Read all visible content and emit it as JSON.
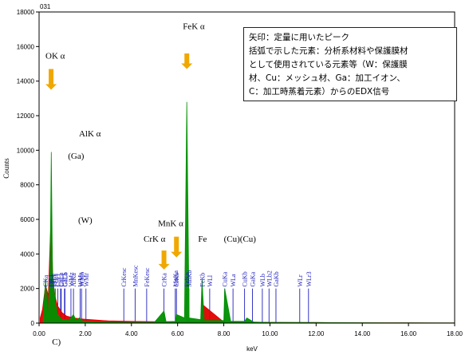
{
  "chart_data": {
    "type": "line",
    "title": "",
    "spectrum_id": "031",
    "xlabel": "keV",
    "ylabel": "Counts",
    "xlim": [
      0,
      18
    ],
    "ylim": [
      0,
      18000
    ],
    "x_ticks": [
      "0.00",
      "2.00",
      "4.00",
      "6.00",
      "8.00",
      "10.00",
      "12.00",
      "14.00",
      "16.00",
      "18.00"
    ],
    "y_ticks": [
      "0",
      "2000",
      "4000",
      "6000",
      "8000",
      "10000",
      "12000",
      "14000",
      "16000",
      "18000"
    ],
    "grid": false,
    "series": [
      {
        "color": "#e00000",
        "points": [
          [
            0.05,
            300
          ],
          [
            0.15,
            800
          ],
          [
            0.28,
            2200
          ],
          [
            0.4,
            1600
          ],
          [
            0.52,
            6400
          ],
          [
            0.6,
            2400
          ],
          [
            0.7,
            1500
          ],
          [
            0.8,
            1000
          ],
          [
            1.0,
            600
          ],
          [
            1.2,
            400
          ],
          [
            1.5,
            300
          ],
          [
            1.8,
            250
          ],
          [
            2.0,
            220
          ],
          [
            3.0,
            130
          ],
          [
            4.0,
            100
          ],
          [
            5.0,
            90
          ],
          [
            6.0,
            80
          ],
          [
            7.0,
            70
          ],
          [
            7.05,
            1100
          ],
          [
            8.0,
            60
          ],
          [
            9.0,
            50
          ],
          [
            10.0,
            45
          ],
          [
            11.0,
            40
          ],
          [
            12.0,
            35
          ],
          [
            13.0,
            25
          ],
          [
            14.0,
            20
          ],
          [
            15.0,
            15
          ],
          [
            16.0,
            12
          ],
          [
            17.0,
            10
          ],
          [
            18.0,
            8
          ]
        ]
      },
      {
        "color": "#009000",
        "points": [
          [
            0.18,
            200
          ],
          [
            0.28,
            2600
          ],
          [
            0.38,
            200
          ],
          [
            0.48,
            3200
          ],
          [
            0.53,
            9900
          ],
          [
            0.58,
            3000
          ],
          [
            0.7,
            1200
          ],
          [
            0.8,
            500
          ],
          [
            1.0,
            200
          ],
          [
            1.1,
            200
          ],
          [
            1.3,
            150
          ],
          [
            1.49,
            500
          ],
          [
            1.6,
            150
          ],
          [
            1.74,
            300
          ],
          [
            1.9,
            100
          ],
          [
            2.5,
            60
          ],
          [
            4.0,
            40
          ],
          [
            5.0,
            50
          ],
          [
            5.41,
            700
          ],
          [
            5.5,
            80
          ],
          [
            5.9,
            100
          ],
          [
            5.95,
            500
          ],
          [
            6.3,
            300
          ],
          [
            6.4,
            12800
          ],
          [
            6.5,
            300
          ],
          [
            7.0,
            200
          ],
          [
            7.06,
            2500
          ],
          [
            7.15,
            150
          ],
          [
            8.0,
            150
          ],
          [
            8.04,
            2000
          ],
          [
            8.3,
            100
          ],
          [
            8.9,
            100
          ],
          [
            9.0,
            300
          ],
          [
            9.3,
            60
          ],
          [
            10.0,
            40
          ],
          [
            12.0,
            30
          ],
          [
            15.0,
            20
          ],
          [
            18.0,
            10
          ]
        ]
      }
    ],
    "marker_lines": [
      {
        "label": "OKa",
        "x": 0.52,
        "color": "#2020c0"
      },
      {
        "label": "CrLl",
        "x": 0.5,
        "color": "#2020c0"
      },
      {
        "label": "CKa",
        "x": 0.28,
        "color": "#2020c0"
      },
      {
        "label": "CrLa",
        "x": 0.57,
        "color": "#2020c0"
      },
      {
        "label": "FeLl",
        "x": 0.62,
        "color": "#2020c0"
      },
      {
        "label": "FeLa",
        "x": 0.7,
        "color": "#2020c0"
      },
      {
        "label": "CuLl",
        "x": 0.81,
        "color": "#2020c0"
      },
      {
        "label": "CuLa",
        "x": 0.93,
        "color": "#2020c0"
      },
      {
        "label": "GaLl",
        "x": 0.96,
        "color": "#2020c0"
      },
      {
        "label": "GaLa",
        "x": 1.1,
        "color": "#2020c0"
      },
      {
        "label": "GaLb",
        "x": 1.12,
        "color": "#2020c0"
      },
      {
        "label": "AlKa",
        "x": 1.49,
        "color": "#2020c0"
      },
      {
        "label": "WMz",
        "x": 1.38,
        "color": "#2020c0"
      },
      {
        "label": "WMa",
        "x": 1.78,
        "color": "#2020c0"
      },
      {
        "label": "WMb",
        "x": 1.84,
        "color": "#2020c0"
      },
      {
        "label": "WMr",
        "x": 2.03,
        "color": "#2020c0"
      },
      {
        "label": "CrKesc",
        "x": 3.67,
        "color": "#2020c0"
      },
      {
        "label": "MnKesc",
        "x": 4.16,
        "color": "#2020c0"
      },
      {
        "label": "FeKesc",
        "x": 4.66,
        "color": "#2020c0"
      },
      {
        "label": "CrKa",
        "x": 5.41,
        "color": "#2020c0"
      },
      {
        "label": "CrKb",
        "x": 5.95,
        "color": "#2020c0"
      },
      {
        "label": "MnKa",
        "x": 5.9,
        "color": "#2020c0"
      },
      {
        "label": "MnKb",
        "x": 6.49,
        "color": "#2020c0"
      },
      {
        "label": "FeKa",
        "x": 6.4,
        "color": "#2020c0"
      },
      {
        "label": "FeKb",
        "x": 7.06,
        "color": "#2020c0"
      },
      {
        "label": "WLl",
        "x": 7.39,
        "color": "#2020c0"
      },
      {
        "label": "CuKa",
        "x": 8.04,
        "color": "#2020c0"
      },
      {
        "label": "WLa",
        "x": 8.4,
        "color": "#2020c0"
      },
      {
        "label": "CuKb",
        "x": 8.9,
        "color": "#2020c0"
      },
      {
        "label": "GaKa",
        "x": 9.24,
        "color": "#2020c0"
      },
      {
        "label": "WLb",
        "x": 9.67,
        "color": "#2020c0"
      },
      {
        "label": "WLb2",
        "x": 9.96,
        "color": "#2020c0"
      },
      {
        "label": "GaKb",
        "x": 10.26,
        "color": "#2020c0"
      },
      {
        "label": "WLr",
        "x": 11.29,
        "color": "#2020c0"
      },
      {
        "label": "WLr3",
        "x": 11.67,
        "color": "#2020c0"
      }
    ],
    "annotations": [
      {
        "text": "OK α",
        "x": 0.7,
        "y": 15300
      },
      {
        "text": "AlK α",
        "x": 2.2,
        "y": 10800
      },
      {
        "text": "(Ga)",
        "x": 1.6,
        "y": 9500
      },
      {
        "text": "(W)",
        "x": 2.0,
        "y": 5800
      },
      {
        "text": "FeK α",
        "x": 6.7,
        "y": 17000
      },
      {
        "text": "MnK α",
        "x": 5.7,
        "y": 5600
      },
      {
        "text": "CrK α",
        "x": 5.0,
        "y": 4700
      },
      {
        "text": "Fe",
        "x": 7.08,
        "y": 4700
      },
      {
        "text": "(Cu)(Cu)",
        "x": 8.7,
        "y": 4700
      },
      {
        "text": "C)",
        "x": 0.75,
        "y": -1250
      }
    ],
    "arrows": [
      {
        "x": 0.52,
        "y_from": 14700,
        "y_to": 13500,
        "color": "#f0a800"
      },
      {
        "x": 6.4,
        "y_from": 15600,
        "y_to": 14700,
        "color": "#f0a800"
      },
      {
        "x": 5.95,
        "y_from": 5000,
        "y_to": 3800,
        "color": "#f0a800"
      },
      {
        "x": 5.41,
        "y_from": 4200,
        "y_to": 3100,
        "color": "#f0a800"
      }
    ],
    "legend_note": [
      "矢印：定量に用いたピーク",
      "括弧で示した元素：分析系材料や保護膜材",
      "として使用されている元素等（W：保護膜",
      "材、Cu：メッシュ材、Ga：加工イオン、",
      "C：加工時蒸着元素）からのEDX信号"
    ]
  }
}
